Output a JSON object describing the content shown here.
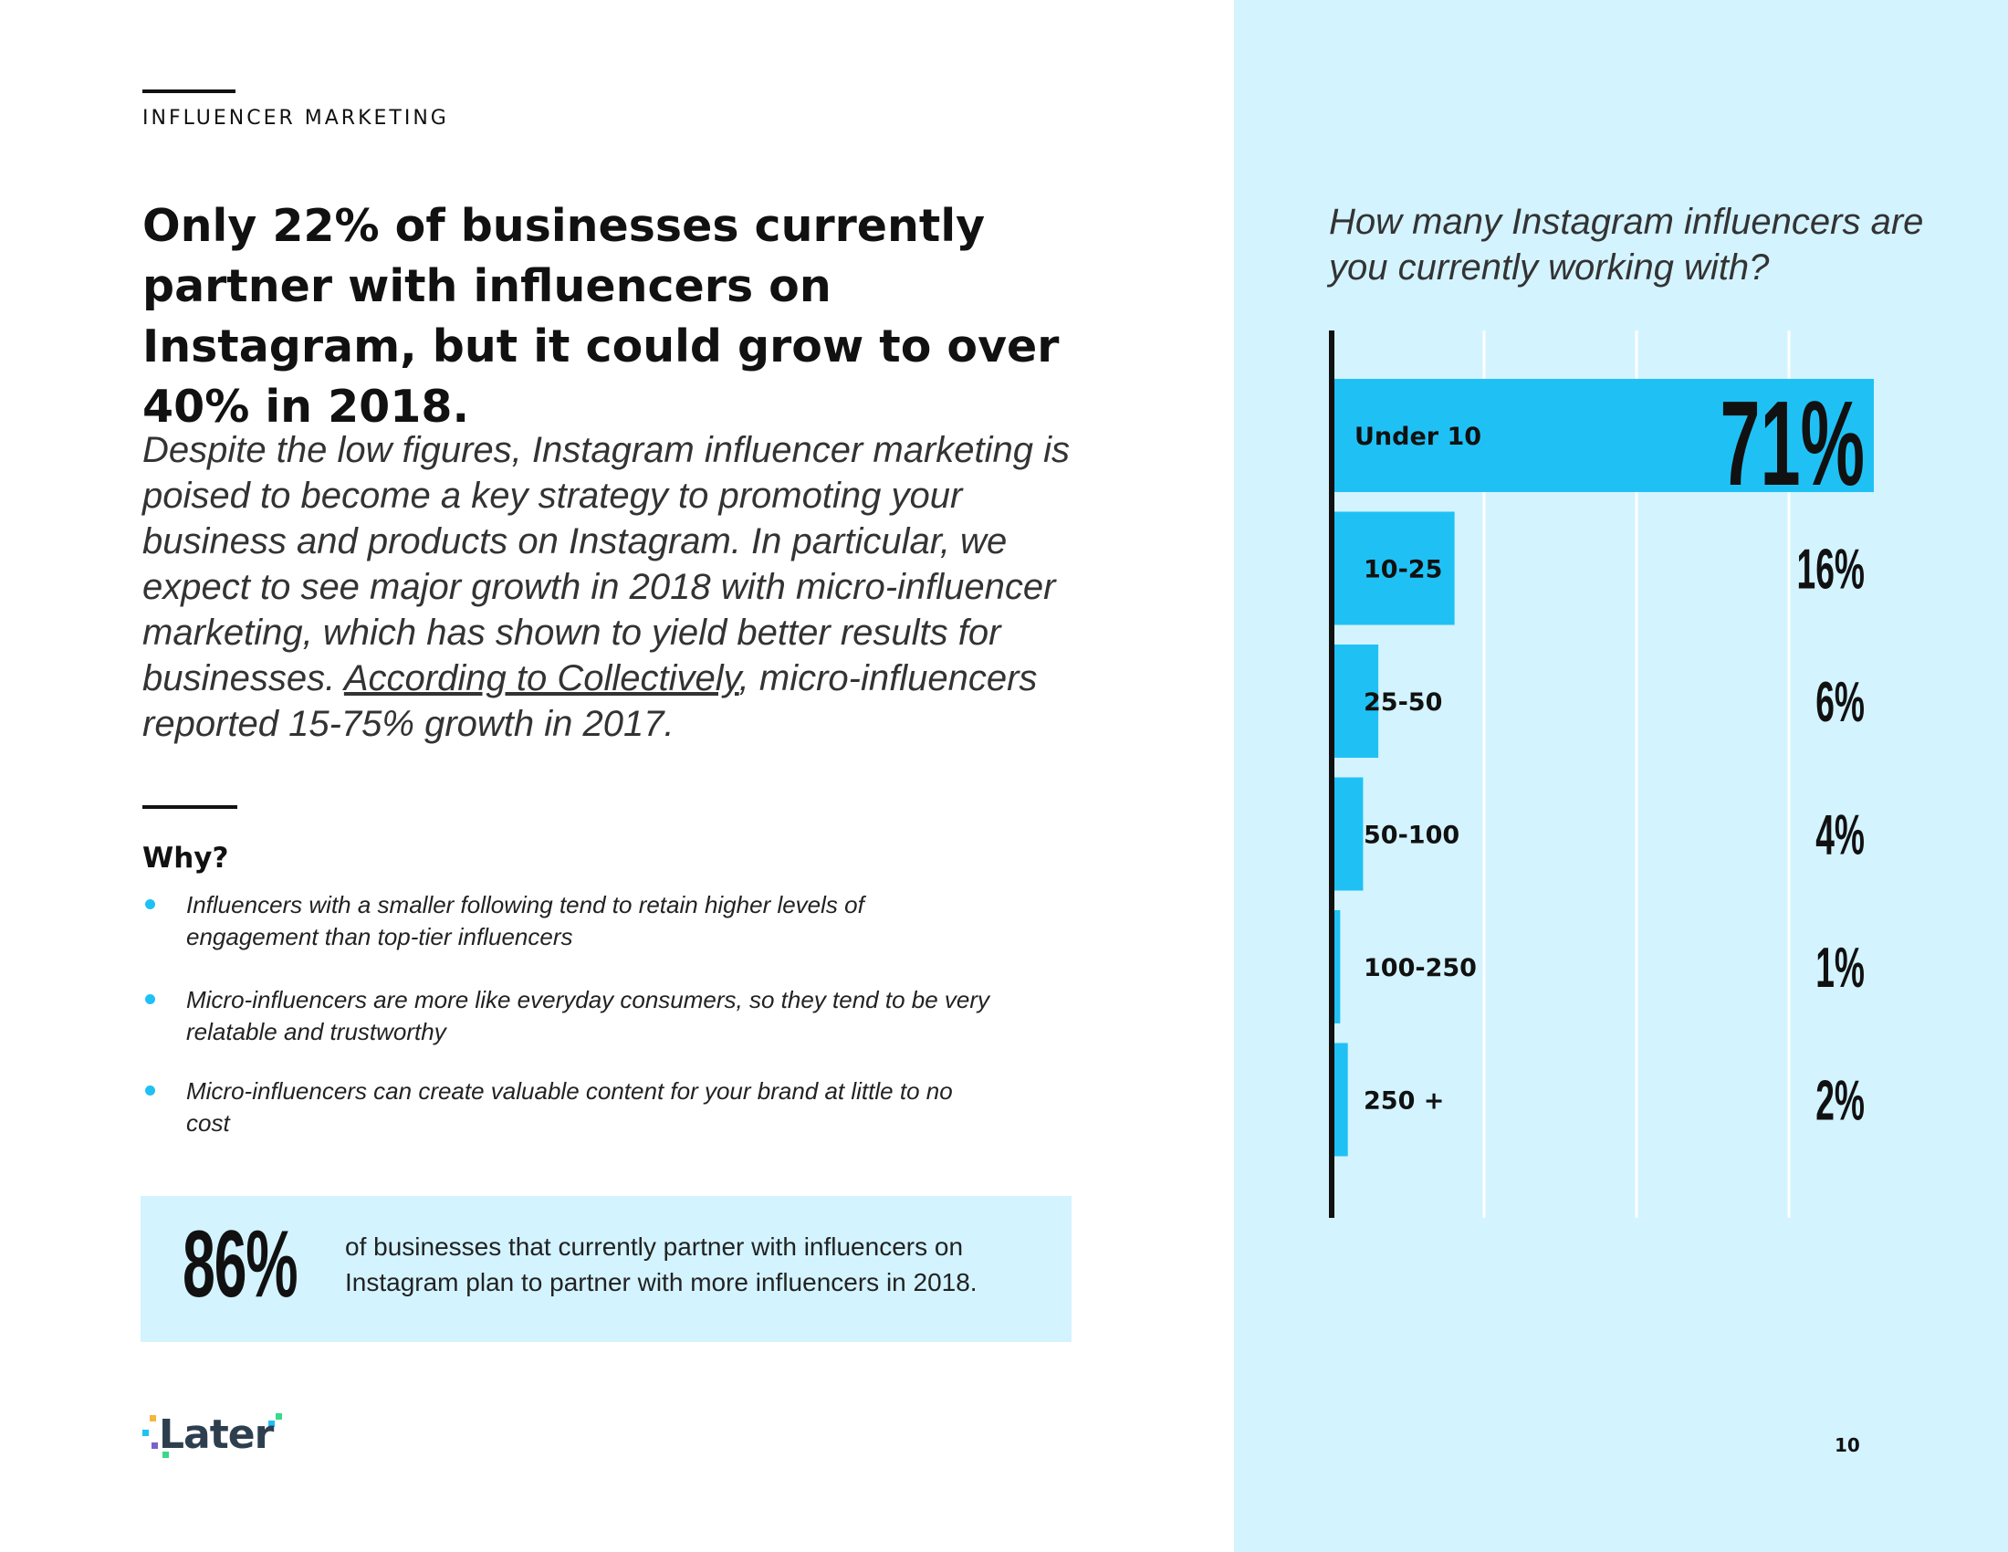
{
  "header": {
    "section_label": "INFLUENCER MARKETING"
  },
  "headline": "Only 22% of businesses currently partner with influencers on Instagram, but it could grow to over 40% in 2018.",
  "body": {
    "text_before_link": "Despite the low figures, Instagram influencer marketing is poised to become a key strategy to promoting your business and products on Instagram. In particular, we expect to see major growth in 2018 with micro-influencer marketing, which has shown to yield better results for businesses. ",
    "link_text": "According to Collectively",
    "text_after_link": ", micro-influencers reported 15-75% growth in 2017."
  },
  "why": {
    "title": "Why?",
    "bullets": [
      "Influencers with a smaller following tend to retain higher levels of engagement than top-tier influencers",
      "Micro-influencers are more like everyday consumers, so they tend to be very relatable and trustworthy",
      "Micro-influencers can create valuable content for your brand at little to no cost"
    ]
  },
  "stat": {
    "number": "86%",
    "text": "of businesses that currently partner with influencers on Instagram plan to partner with more influencers in 2018."
  },
  "logo": {
    "text": "Later"
  },
  "colors": {
    "accent": "#1fc1f5",
    "panel_bg": "#d3f3ff",
    "text": "#111111"
  },
  "chart_data": {
    "type": "bar",
    "orientation": "horizontal",
    "title": "How many Instagram influencers are you currently working with?",
    "categories": [
      "Under 10",
      "10-25",
      "25-50",
      "50-100",
      "100-250",
      "250 +"
    ],
    "values": [
      71,
      16,
      6,
      4,
      1,
      2
    ],
    "value_labels": [
      "71%",
      "16%",
      "6%",
      "4%",
      "1%",
      "2%"
    ],
    "xlim": [
      0,
      71
    ],
    "grid": true,
    "bar_color": "#1fc1f5"
  },
  "page_number": "10"
}
